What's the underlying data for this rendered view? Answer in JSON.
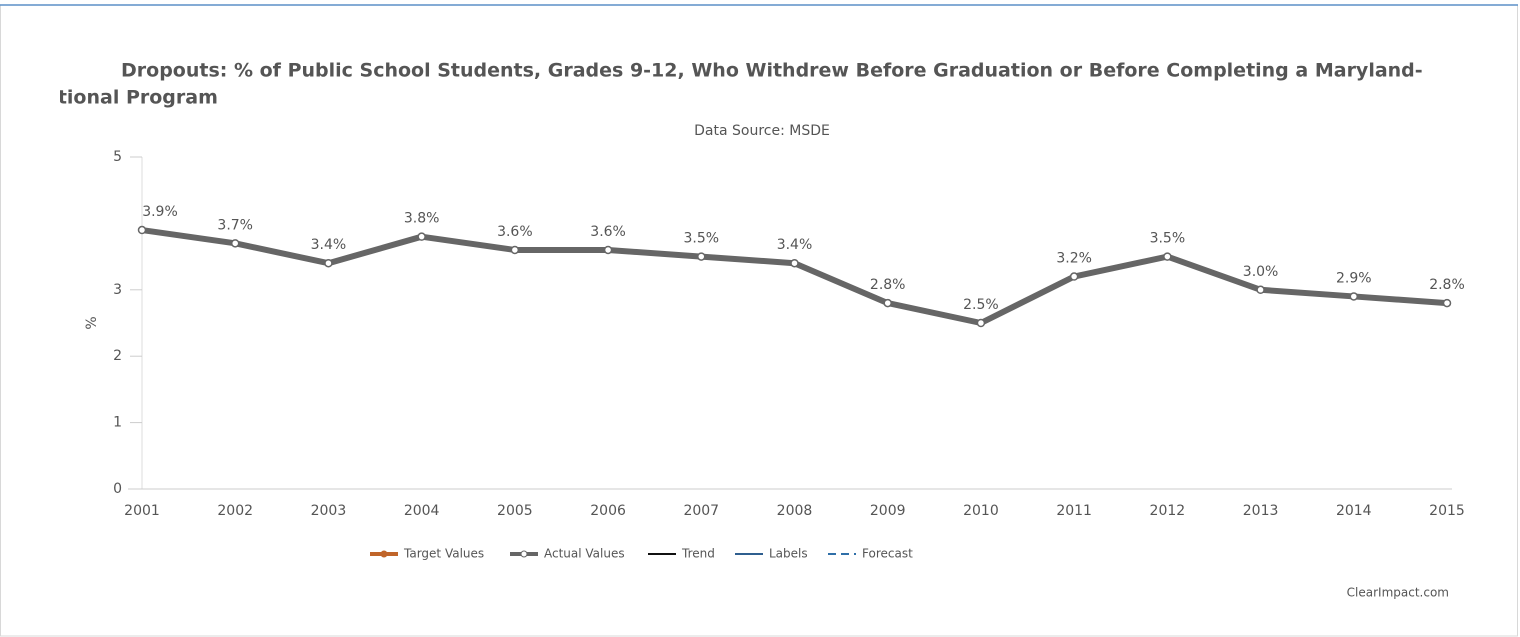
{
  "chart_data": {
    "type": "line",
    "title": [
      "Dropouts: % of Public School Students, Grades 9-12, Who Withdrew Before Graduation or Before Completing a Maryland-",
      "ational Program"
    ],
    "subtitle": "Data Source: MSDE",
    "y_label": "%",
    "credit": "ClearImpact.com",
    "categories": [
      "2001",
      "2002",
      "2003",
      "2004",
      "2005",
      "2006",
      "2007",
      "2008",
      "2009",
      "2010",
      "2011",
      "2012",
      "2013",
      "2014",
      "2015"
    ],
    "series": [
      {
        "name": "Actual Values",
        "color": "#666666",
        "values": [
          3.9,
          3.7,
          3.4,
          3.8,
          3.6,
          3.6,
          3.5,
          3.4,
          2.8,
          2.5,
          3.2,
          3.5,
          3.0,
          2.9,
          2.8
        ],
        "value_labels": [
          "3.9%",
          "3.7%",
          "3.4%",
          "3.8%",
          "3.6%",
          "3.6%",
          "3.5%",
          "3.4%",
          "2.8%",
          "2.5%",
          "3.2%",
          "3.5%",
          "3.0%",
          "2.9%",
          "2.8%"
        ]
      }
    ],
    "legend": [
      {
        "name": "Target Values",
        "color": "#c0652a",
        "style": "marker"
      },
      {
        "name": "Actual Values",
        "color": "#666666",
        "style": "marker"
      },
      {
        "name": "Trend",
        "color": "#111111",
        "style": "line"
      },
      {
        "name": "Labels",
        "color": "#2f5f8f",
        "style": "line"
      },
      {
        "name": "Forecast",
        "color": "#2f6fa8",
        "style": "dashed"
      }
    ],
    "ylim": [
      0,
      5
    ],
    "yticks": [
      0,
      1,
      2,
      3,
      5
    ]
  }
}
